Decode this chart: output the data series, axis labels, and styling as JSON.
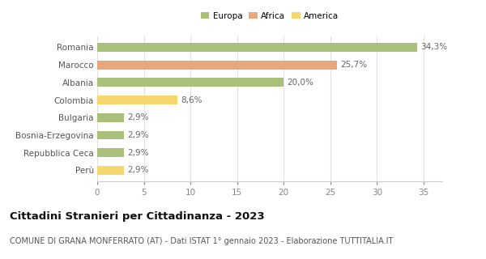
{
  "categories": [
    "Perù",
    "Repubblica Ceca",
    "Bosnia-Erzegovina",
    "Bulgaria",
    "Colombia",
    "Albania",
    "Marocco",
    "Romania"
  ],
  "values": [
    2.9,
    2.9,
    2.9,
    2.9,
    8.6,
    20.0,
    25.7,
    34.3
  ],
  "colors": [
    "#f5d76e",
    "#a8c07a",
    "#a8c07a",
    "#a8c07a",
    "#f5d76e",
    "#a8c07a",
    "#e8a87c",
    "#a8c07a"
  ],
  "labels": [
    "2,9%",
    "2,9%",
    "2,9%",
    "2,9%",
    "8,6%",
    "20,0%",
    "25,7%",
    "34,3%"
  ],
  "xlim": [
    0,
    37
  ],
  "xticks": [
    0,
    5,
    10,
    15,
    20,
    25,
    30,
    35
  ],
  "title": "Cittadini Stranieri per Cittadinanza - 2023",
  "subtitle": "COMUNE DI GRANA MONFERRATO (AT) - Dati ISTAT 1° gennaio 2023 - Elaborazione TUTTITALIA.IT",
  "legend_entries": [
    "Europa",
    "Africa",
    "America"
  ],
  "legend_colors": [
    "#a8c07a",
    "#e8a87c",
    "#f5d76e"
  ],
  "background_color": "#ffffff",
  "grid_color": "#e0e0e0",
  "bar_height": 0.5,
  "label_fontsize": 7.5,
  "tick_fontsize": 7.5,
  "title_fontsize": 9.5,
  "subtitle_fontsize": 7.0
}
